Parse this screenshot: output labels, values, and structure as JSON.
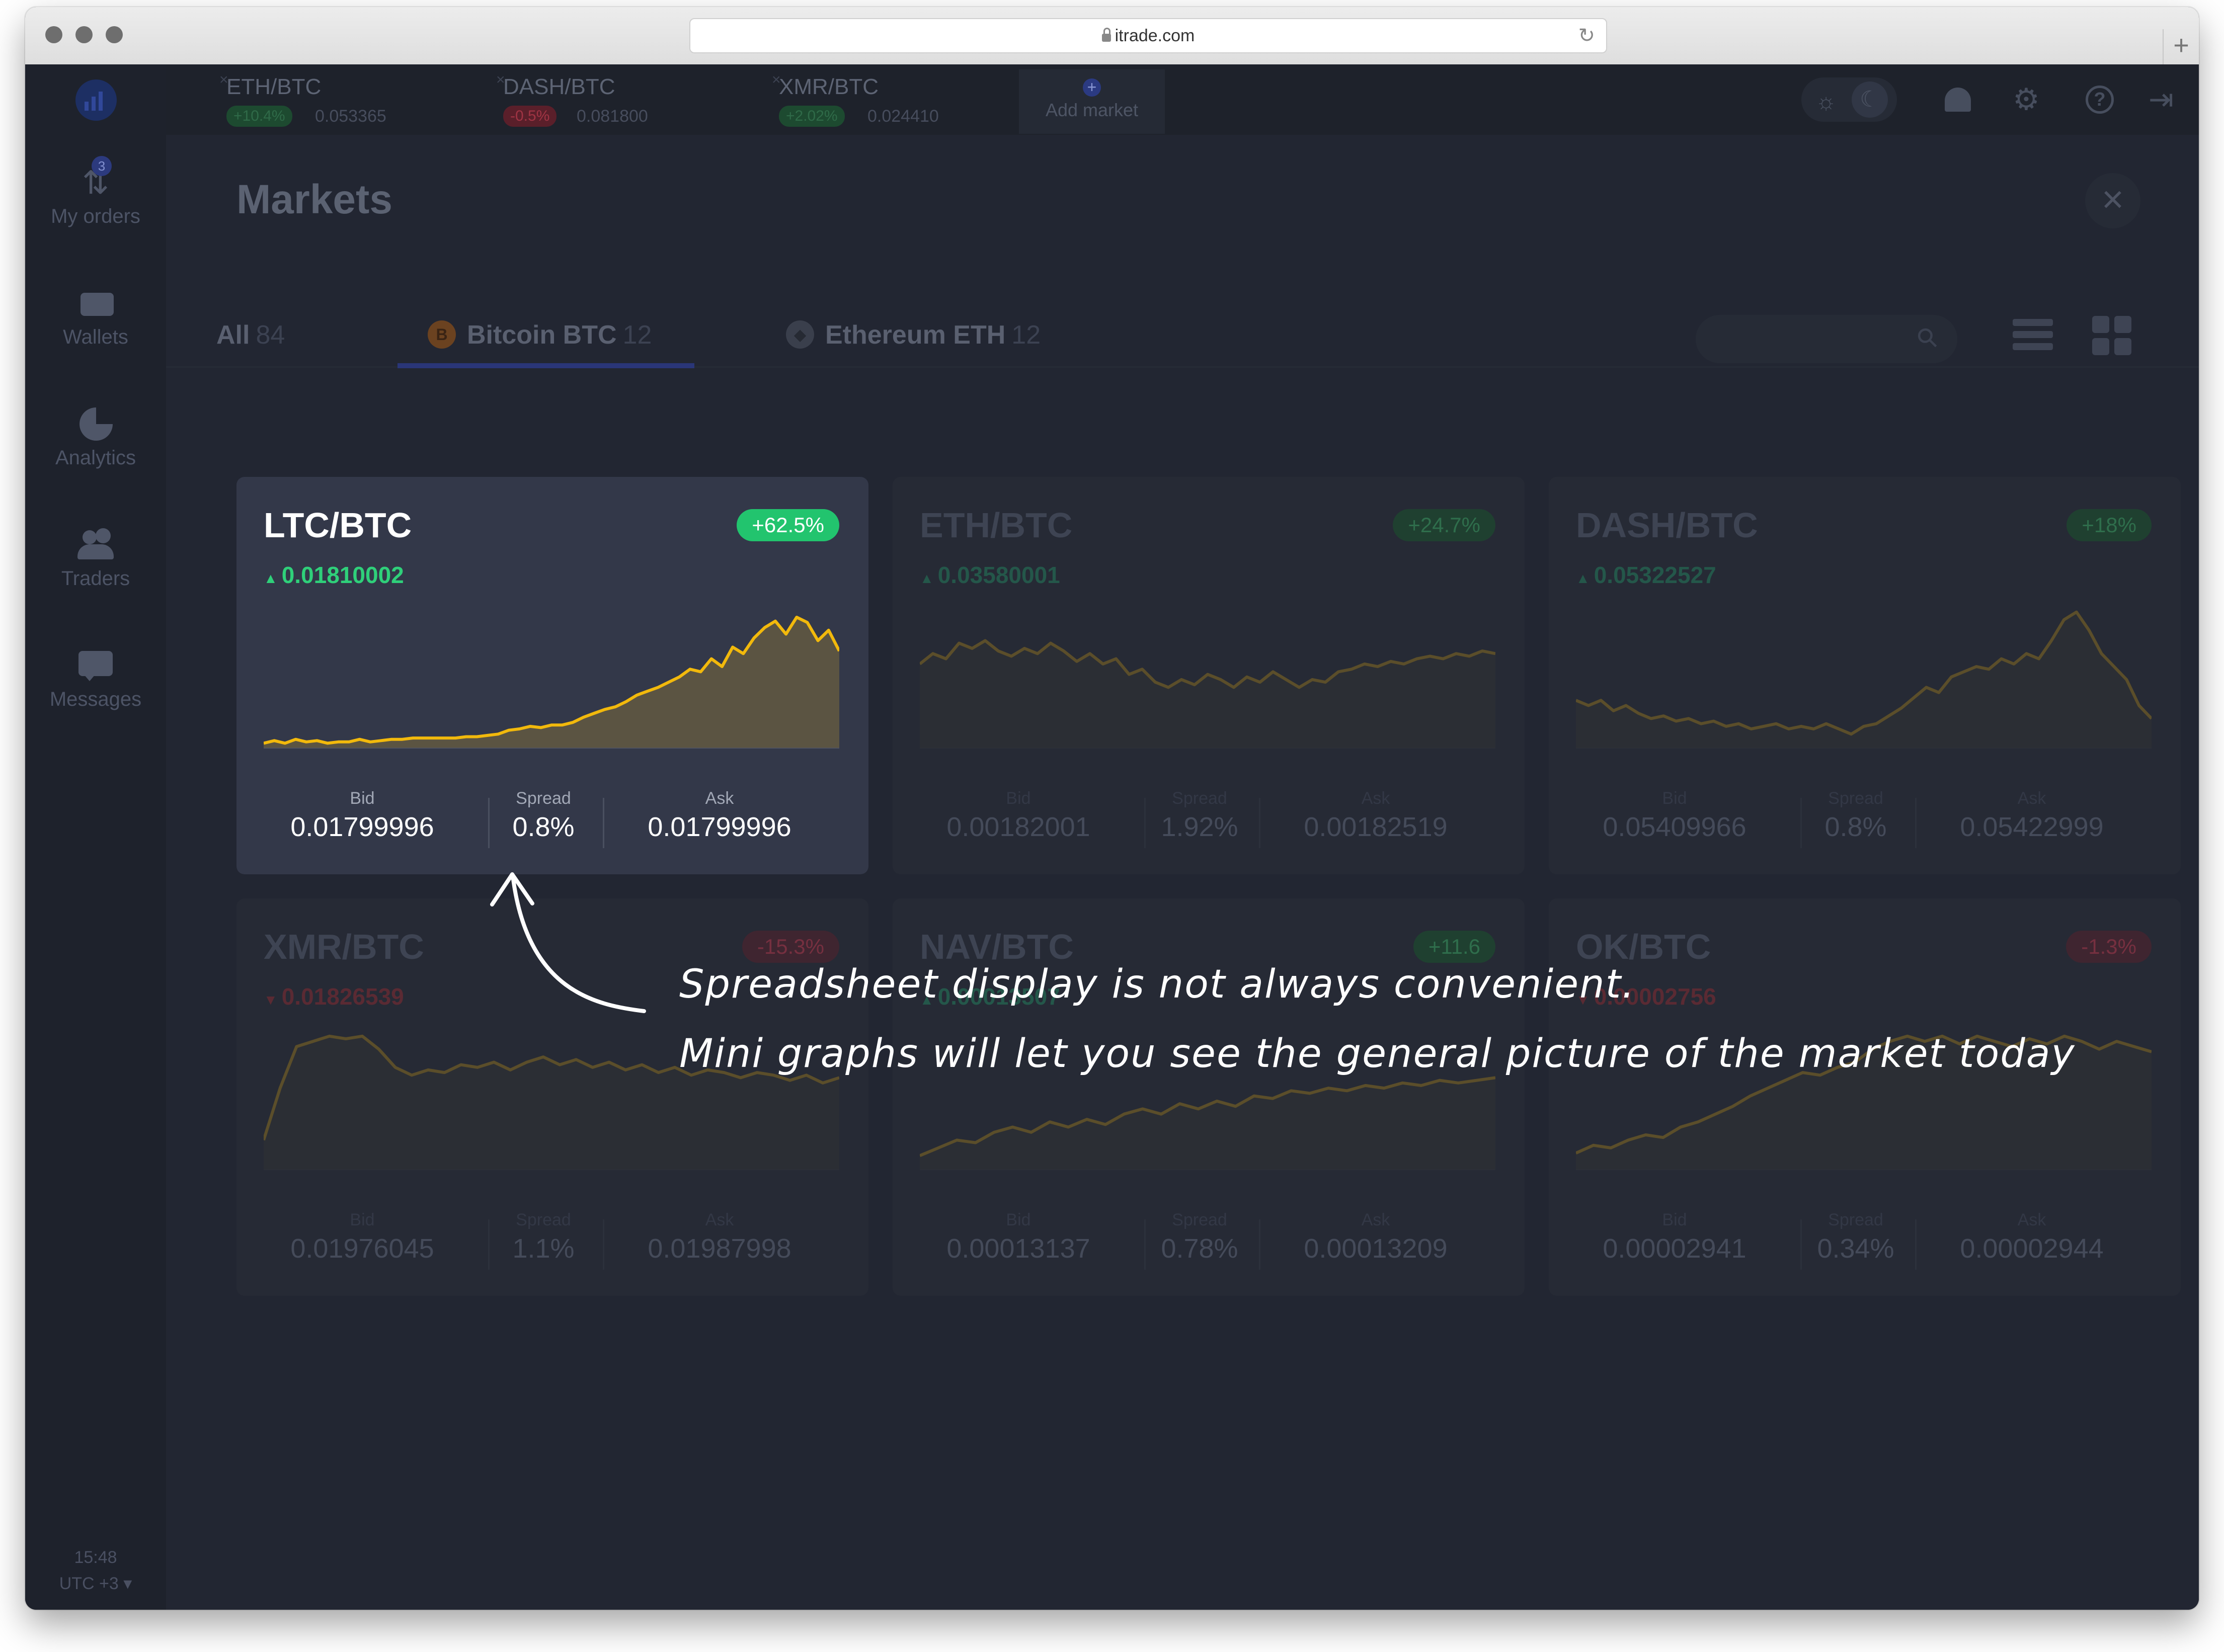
{
  "browser": {
    "url": "itrade.com"
  },
  "sidebar": {
    "items": [
      {
        "label": "My orders",
        "icon": "arrows-updown-icon",
        "badge": "3"
      },
      {
        "label": "Wallets",
        "icon": "wallet-icon"
      },
      {
        "label": "Analytics",
        "icon": "pie-chart-icon"
      },
      {
        "label": "Traders",
        "icon": "users-icon"
      },
      {
        "label": "Messages",
        "icon": "chat-icon"
      }
    ],
    "time": "15:48",
    "timezone": "UTC +3 ▾"
  },
  "top_tabs": [
    {
      "pair": "ETH/BTC",
      "change": "+10.4%",
      "price": "0.053365",
      "direction": "up"
    },
    {
      "pair": "DASH/BTC",
      "change": "-0.5%",
      "price": "0.081800",
      "direction": "down"
    },
    {
      "pair": "XMR/BTC",
      "change": "+2.02%",
      "price": "0.024410",
      "direction": "up"
    }
  ],
  "add_market_label": "Add market",
  "page_title": "Markets",
  "filters": [
    {
      "label": "All",
      "count": "84"
    },
    {
      "label": "Bitcoin BTC",
      "count": "12",
      "icon": "bitcoin-icon",
      "icon_char": "B",
      "icon_color": "#6b4220"
    },
    {
      "label": "Ethereum ETH",
      "count": "12",
      "icon": "ethereum-icon",
      "icon_char": "◆",
      "icon_color": "#3a3f4c"
    }
  ],
  "stat_labels": {
    "bid": "Bid",
    "spread": "Spread",
    "ask": "Ask"
  },
  "cards": [
    {
      "pair": "LTC/BTC",
      "change": "+62.5%",
      "direction": "up",
      "last": "0.01810002",
      "bid": "0.01799996",
      "spread": "0.8%",
      "ask": "0.01799996",
      "active": true,
      "trend": [
        1,
        3,
        1,
        4,
        2,
        3,
        1,
        2,
        2,
        4,
        2,
        3,
        4,
        4,
        5,
        5,
        5,
        5,
        5,
        6,
        6,
        7,
        8,
        11,
        12,
        14,
        13,
        15,
        15,
        17,
        21,
        24,
        27,
        29,
        33,
        38,
        41,
        44,
        48,
        52,
        58,
        56,
        66,
        60,
        75,
        70,
        82,
        90,
        95,
        85,
        98,
        94,
        80,
        88,
        72
      ]
    },
    {
      "pair": "ETH/BTC",
      "change": "+24.7%",
      "direction": "up",
      "last": "0.03580001",
      "bid": "0.00182001",
      "spread": "1.92%",
      "ask": "0.00182519",
      "active": false,
      "trend": [
        62,
        70,
        66,
        78,
        74,
        80,
        72,
        68,
        74,
        70,
        78,
        72,
        64,
        70,
        62,
        66,
        54,
        58,
        48,
        44,
        50,
        46,
        54,
        50,
        44,
        52,
        48,
        56,
        50,
        44,
        50,
        48,
        56,
        58,
        62,
        60,
        64,
        62,
        66,
        68,
        66,
        70,
        68,
        72,
        70
      ]
    },
    {
      "pair": "DASH/BTC",
      "change": "+18%",
      "direction": "up",
      "last": "0.05322527",
      "bid": "0.05409966",
      "spread": "0.8%",
      "ask": "0.05422999",
      "active": false,
      "trend": [
        34,
        30,
        34,
        26,
        30,
        24,
        20,
        22,
        18,
        20,
        16,
        18,
        14,
        16,
        12,
        14,
        16,
        12,
        14,
        12,
        16,
        12,
        8,
        14,
        16,
        22,
        28,
        36,
        44,
        40,
        52,
        56,
        60,
        58,
        66,
        62,
        70,
        66,
        80,
        96,
        102,
        88,
        70,
        60,
        50,
        30,
        20
      ]
    },
    {
      "pair": "XMR/BTC",
      "change": "-15.3%",
      "direction": "down",
      "last": "0.01826539",
      "bid": "0.01976045",
      "spread": "1.1%",
      "ask": "0.01987998",
      "active": false,
      "trend": [
        20,
        60,
        92,
        96,
        100,
        98,
        100,
        90,
        76,
        70,
        74,
        72,
        78,
        76,
        80,
        74,
        80,
        84,
        78,
        82,
        76,
        80,
        74,
        78,
        72,
        76,
        70,
        74,
        72,
        68,
        72,
        70,
        66,
        70,
        64,
        68
      ]
    },
    {
      "pair": "NAV/BTC",
      "change": "+11.6",
      "direction": "up",
      "last": "0.00013507",
      "bid": "0.00013137",
      "spread": "0.78%",
      "ask": "0.00013209",
      "active": false,
      "trend": [
        8,
        14,
        20,
        18,
        26,
        30,
        26,
        34,
        30,
        36,
        32,
        40,
        44,
        40,
        48,
        44,
        50,
        46,
        54,
        52,
        58,
        56,
        60,
        58,
        62,
        60,
        64,
        62,
        66,
        64,
        66,
        68
      ]
    },
    {
      "pair": "OK/BTC",
      "change": "-1.3%",
      "direction": "down",
      "last": "0.00002756",
      "bid": "0.00002941",
      "spread": "0.34%",
      "ask": "0.00002944",
      "active": false,
      "trend": [
        10,
        16,
        14,
        20,
        24,
        22,
        30,
        34,
        40,
        46,
        54,
        60,
        66,
        72,
        70,
        76,
        80,
        90,
        96,
        100,
        96,
        100,
        94,
        100,
        96,
        92,
        98,
        94,
        100,
        96,
        90,
        96,
        92,
        88
      ]
    }
  ],
  "annotation": {
    "line1": "Spreadsheet display is not always convenient.",
    "line2": "Mini graphs will let you see the general picture of the market today"
  },
  "colors": {
    "up_green": "#22c46e",
    "down_red": "#d83c52",
    "chart_line": "#f2b90c",
    "accent_blue": "#2a3678",
    "background": "#222632"
  }
}
